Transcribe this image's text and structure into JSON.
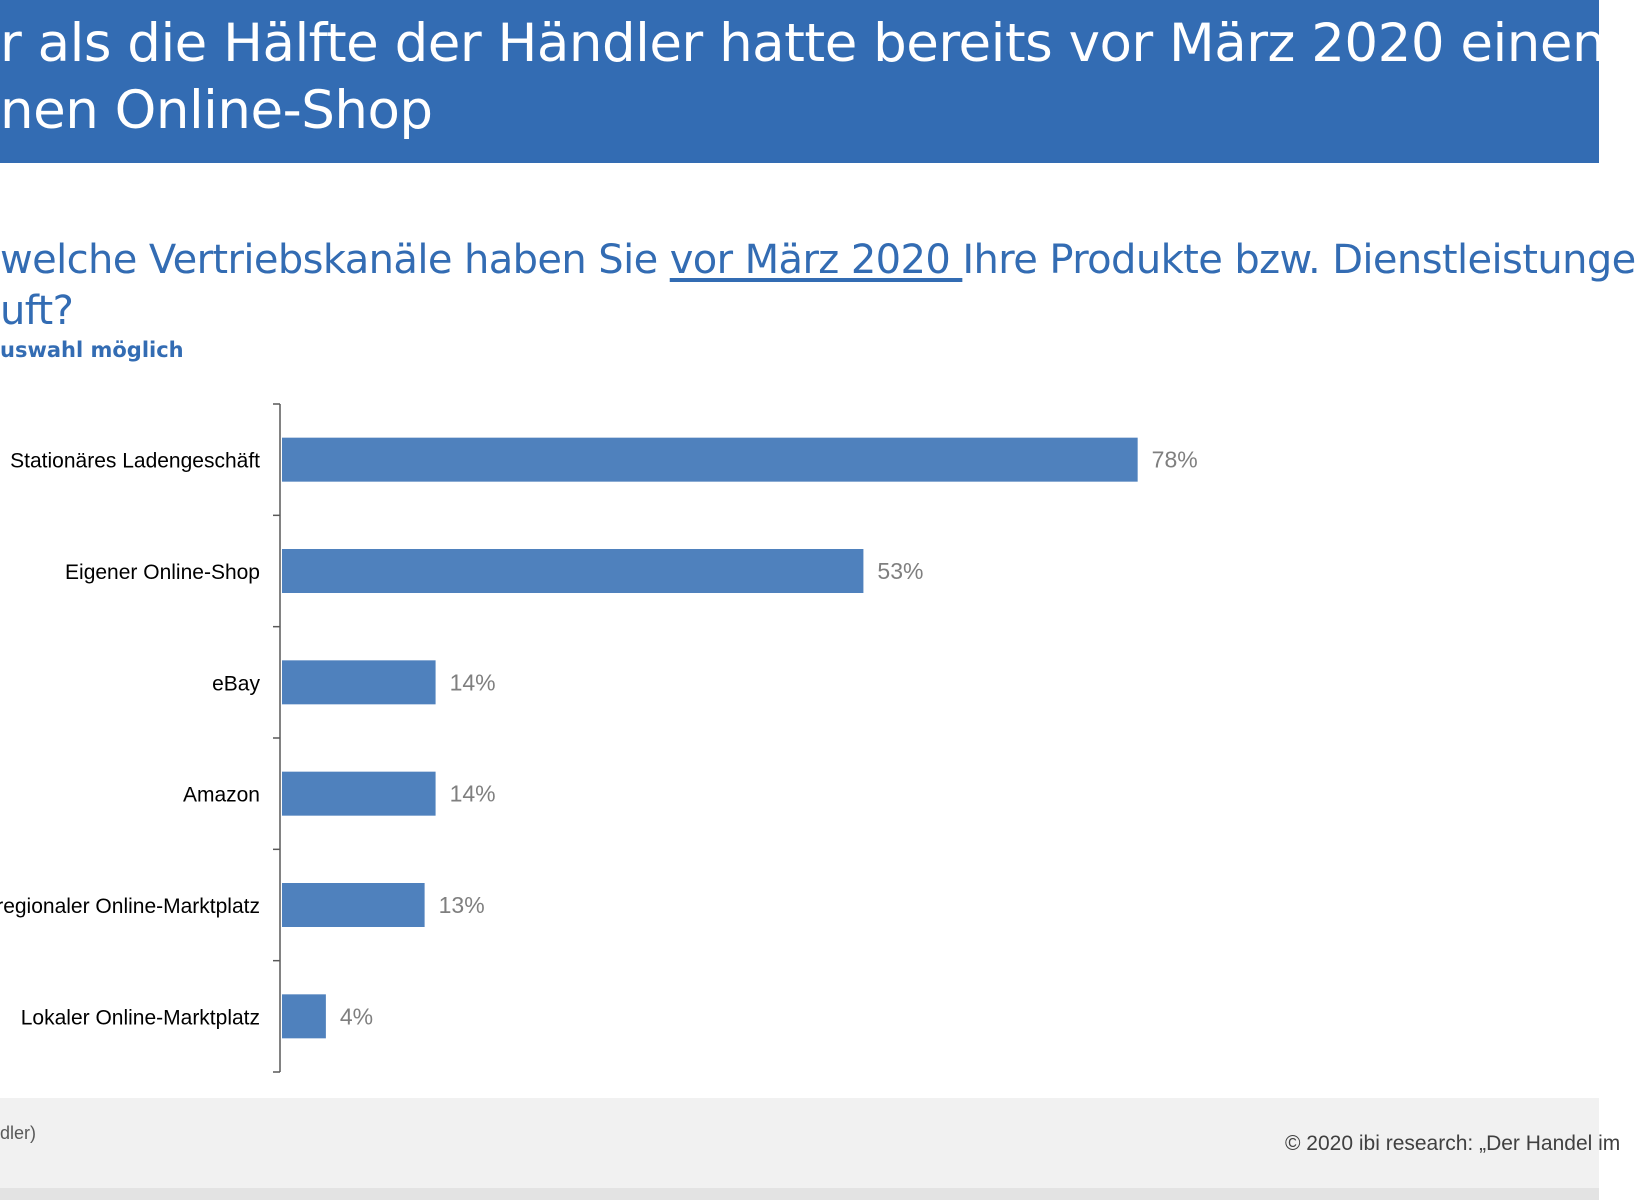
{
  "header": {
    "line1": "r als die Hälfte der Händler hatte bereits vor März 2020 einen",
    "line2": "nen Online-Shop"
  },
  "question": {
    "line1_before": "welche Vertriebskanäle haben Sie ",
    "line1_underlined": "vor März 2020 ",
    "line1_after": "Ihre Produkte bzw. Dienstleistunge",
    "line2": "uft?",
    "hint": "uswahl möglich"
  },
  "footer": {
    "left": "dler)",
    "right": "© 2020 ibi research: „Der Handel im"
  },
  "colors": {
    "header_bg": "#336cb3",
    "bar": "#4f81bd",
    "value_label": "#7f7f7f",
    "category_label": "#000000"
  },
  "chart_data": {
    "type": "bar",
    "orientation": "horizontal",
    "title": "",
    "xlabel": "",
    "ylabel": "",
    "xlim": [
      0,
      100
    ],
    "grid": false,
    "categories": [
      "Stationäres Ladengeschäft",
      "Eigener Online-Shop",
      "eBay",
      "Amazon",
      "regionaler Online-Marktplatz",
      "Lokaler Online-Marktplatz"
    ],
    "values": [
      78,
      53,
      14,
      14,
      13,
      4
    ],
    "value_labels": [
      "78%",
      "53%",
      "14%",
      "14%",
      "13%",
      "4%"
    ]
  }
}
